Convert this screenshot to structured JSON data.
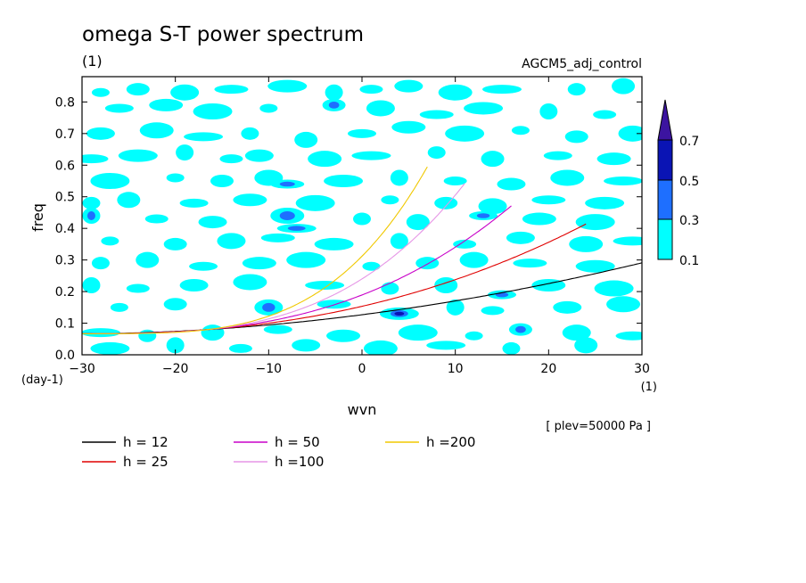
{
  "chart_data": {
    "type": "heatmap",
    "title": "omega S-T power spectrum",
    "units": "(1)",
    "right_label": "AGCM5_adj_control",
    "xlabel": "wvn",
    "x_units": "(1)",
    "ylabel": "freq",
    "y_units": "(day-1)",
    "xlim": [
      -30,
      30
    ],
    "ylim": [
      0.0,
      0.88
    ],
    "x_ticks": [
      -30,
      -20,
      -10,
      0,
      10,
      20,
      30
    ],
    "y_ticks": [
      0.0,
      0.1,
      0.2,
      0.3,
      0.4,
      0.5,
      0.6,
      0.7,
      0.8
    ],
    "pressure_note": "[ plev=50000 Pa ]",
    "colorbar": {
      "levels": [
        "0.1",
        "0.3",
        "0.5",
        "0.7"
      ],
      "colors": [
        "#00ffff",
        "#1e6fff",
        "#0a14b4",
        "#3c14a0"
      ]
    },
    "blobs": [
      {
        "x": -28,
        "y": 0.83,
        "c": 0
      },
      {
        "x": -24,
        "y": 0.84,
        "c": 0
      },
      {
        "x": -19,
        "y": 0.83,
        "c": 0
      },
      {
        "x": -14,
        "y": 0.84,
        "c": 0
      },
      {
        "x": -8,
        "y": 0.85,
        "c": 0
      },
      {
        "x": -3,
        "y": 0.83,
        "c": 0
      },
      {
        "x": 1,
        "y": 0.84,
        "c": 0
      },
      {
        "x": 5,
        "y": 0.85,
        "c": 0
      },
      {
        "x": 10,
        "y": 0.83,
        "c": 0
      },
      {
        "x": 15,
        "y": 0.84,
        "c": 0
      },
      {
        "x": 23,
        "y": 0.84,
        "c": 0
      },
      {
        "x": 28,
        "y": 0.85,
        "c": 0
      },
      {
        "x": -26,
        "y": 0.78,
        "c": 0
      },
      {
        "x": -21,
        "y": 0.79,
        "c": 0
      },
      {
        "x": -16,
        "y": 0.77,
        "c": 0
      },
      {
        "x": -10,
        "y": 0.78,
        "c": 0
      },
      {
        "x": -3,
        "y": 0.79,
        "c": 1
      },
      {
        "x": 2,
        "y": 0.78,
        "c": 0
      },
      {
        "x": 8,
        "y": 0.76,
        "c": 0
      },
      {
        "x": 13,
        "y": 0.78,
        "c": 0
      },
      {
        "x": 20,
        "y": 0.77,
        "c": 0
      },
      {
        "x": 26,
        "y": 0.76,
        "c": 0
      },
      {
        "x": -28,
        "y": 0.7,
        "c": 0
      },
      {
        "x": -22,
        "y": 0.71,
        "c": 0
      },
      {
        "x": -17,
        "y": 0.69,
        "c": 0
      },
      {
        "x": -12,
        "y": 0.7,
        "c": 0
      },
      {
        "x": -6,
        "y": 0.68,
        "c": 0
      },
      {
        "x": 0,
        "y": 0.7,
        "c": 0
      },
      {
        "x": 5,
        "y": 0.72,
        "c": 0
      },
      {
        "x": 11,
        "y": 0.7,
        "c": 0
      },
      {
        "x": 17,
        "y": 0.71,
        "c": 0
      },
      {
        "x": 23,
        "y": 0.69,
        "c": 0
      },
      {
        "x": 29,
        "y": 0.7,
        "c": 0
      },
      {
        "x": -29,
        "y": 0.62,
        "c": 0
      },
      {
        "x": -24,
        "y": 0.63,
        "c": 0
      },
      {
        "x": -19,
        "y": 0.64,
        "c": 0
      },
      {
        "x": -14,
        "y": 0.62,
        "c": 0
      },
      {
        "x": -11,
        "y": 0.63,
        "c": 0
      },
      {
        "x": -4,
        "y": 0.62,
        "c": 0
      },
      {
        "x": 1,
        "y": 0.63,
        "c": 0
      },
      {
        "x": 8,
        "y": 0.64,
        "c": 0
      },
      {
        "x": 14,
        "y": 0.62,
        "c": 0
      },
      {
        "x": 21,
        "y": 0.63,
        "c": 0
      },
      {
        "x": 27,
        "y": 0.62,
        "c": 0
      },
      {
        "x": -27,
        "y": 0.55,
        "c": 0
      },
      {
        "x": -20,
        "y": 0.56,
        "c": 0
      },
      {
        "x": -15,
        "y": 0.55,
        "c": 0
      },
      {
        "x": -10,
        "y": 0.56,
        "c": 0
      },
      {
        "x": -8,
        "y": 0.54,
        "c": 1
      },
      {
        "x": -2,
        "y": 0.55,
        "c": 0
      },
      {
        "x": 4,
        "y": 0.56,
        "c": 0
      },
      {
        "x": 10,
        "y": 0.55,
        "c": 0
      },
      {
        "x": 16,
        "y": 0.54,
        "c": 0
      },
      {
        "x": 22,
        "y": 0.56,
        "c": 0
      },
      {
        "x": 28,
        "y": 0.55,
        "c": 0
      },
      {
        "x": -29,
        "y": 0.48,
        "c": 0
      },
      {
        "x": -25,
        "y": 0.49,
        "c": 0
      },
      {
        "x": -18,
        "y": 0.48,
        "c": 0
      },
      {
        "x": -12,
        "y": 0.49,
        "c": 0
      },
      {
        "x": -5,
        "y": 0.48,
        "c": 0
      },
      {
        "x": 3,
        "y": 0.49,
        "c": 0
      },
      {
        "x": 9,
        "y": 0.48,
        "c": 0
      },
      {
        "x": 14,
        "y": 0.47,
        "c": 0
      },
      {
        "x": 20,
        "y": 0.49,
        "c": 0
      },
      {
        "x": 26,
        "y": 0.48,
        "c": 0
      },
      {
        "x": -29,
        "y": 0.44,
        "c": 1
      },
      {
        "x": -22,
        "y": 0.43,
        "c": 0
      },
      {
        "x": -16,
        "y": 0.42,
        "c": 0
      },
      {
        "x": -8,
        "y": 0.44,
        "c": 1
      },
      {
        "x": -7,
        "y": 0.4,
        "c": 1
      },
      {
        "x": 0,
        "y": 0.43,
        "c": 0
      },
      {
        "x": 6,
        "y": 0.42,
        "c": 0
      },
      {
        "x": 13,
        "y": 0.44,
        "c": 1
      },
      {
        "x": 19,
        "y": 0.43,
        "c": 0
      },
      {
        "x": 25,
        "y": 0.42,
        "c": 0
      },
      {
        "x": -27,
        "y": 0.36,
        "c": 0
      },
      {
        "x": -20,
        "y": 0.35,
        "c": 0
      },
      {
        "x": -14,
        "y": 0.36,
        "c": 0
      },
      {
        "x": -9,
        "y": 0.37,
        "c": 0
      },
      {
        "x": -3,
        "y": 0.35,
        "c": 0
      },
      {
        "x": 4,
        "y": 0.36,
        "c": 0
      },
      {
        "x": 11,
        "y": 0.35,
        "c": 0
      },
      {
        "x": 17,
        "y": 0.37,
        "c": 0
      },
      {
        "x": 24,
        "y": 0.35,
        "c": 0
      },
      {
        "x": 29,
        "y": 0.36,
        "c": 0
      },
      {
        "x": -28,
        "y": 0.29,
        "c": 0
      },
      {
        "x": -23,
        "y": 0.3,
        "c": 0
      },
      {
        "x": -17,
        "y": 0.28,
        "c": 0
      },
      {
        "x": -11,
        "y": 0.29,
        "c": 0
      },
      {
        "x": -6,
        "y": 0.3,
        "c": 0
      },
      {
        "x": 1,
        "y": 0.28,
        "c": 0
      },
      {
        "x": 7,
        "y": 0.29,
        "c": 0
      },
      {
        "x": 12,
        "y": 0.3,
        "c": 0
      },
      {
        "x": 18,
        "y": 0.29,
        "c": 0
      },
      {
        "x": 25,
        "y": 0.28,
        "c": 0
      },
      {
        "x": -29,
        "y": 0.22,
        "c": 0
      },
      {
        "x": -24,
        "y": 0.21,
        "c": 0
      },
      {
        "x": -18,
        "y": 0.22,
        "c": 0
      },
      {
        "x": -12,
        "y": 0.23,
        "c": 0
      },
      {
        "x": -4,
        "y": 0.22,
        "c": 0
      },
      {
        "x": 3,
        "y": 0.21,
        "c": 0
      },
      {
        "x": 9,
        "y": 0.22,
        "c": 0
      },
      {
        "x": 15,
        "y": 0.19,
        "c": 1
      },
      {
        "x": 20,
        "y": 0.22,
        "c": 0
      },
      {
        "x": 27,
        "y": 0.21,
        "c": 0
      },
      {
        "x": -26,
        "y": 0.15,
        "c": 0
      },
      {
        "x": -20,
        "y": 0.16,
        "c": 0
      },
      {
        "x": -10,
        "y": 0.15,
        "c": 1
      },
      {
        "x": -3,
        "y": 0.16,
        "c": 0
      },
      {
        "x": 4,
        "y": 0.13,
        "c": 2
      },
      {
        "x": 10,
        "y": 0.15,
        "c": 0
      },
      {
        "x": 14,
        "y": 0.14,
        "c": 0
      },
      {
        "x": 22,
        "y": 0.15,
        "c": 0
      },
      {
        "x": 28,
        "y": 0.16,
        "c": 0
      },
      {
        "x": -28,
        "y": 0.07,
        "c": 0
      },
      {
        "x": -23,
        "y": 0.06,
        "c": 0
      },
      {
        "x": -16,
        "y": 0.07,
        "c": 0
      },
      {
        "x": -9,
        "y": 0.08,
        "c": 0
      },
      {
        "x": -2,
        "y": 0.06,
        "c": 0
      },
      {
        "x": 6,
        "y": 0.07,
        "c": 0
      },
      {
        "x": 12,
        "y": 0.06,
        "c": 0
      },
      {
        "x": 17,
        "y": 0.08,
        "c": 1
      },
      {
        "x": 23,
        "y": 0.07,
        "c": 0
      },
      {
        "x": 29,
        "y": 0.06,
        "c": 0
      },
      {
        "x": -27,
        "y": 0.02,
        "c": 0
      },
      {
        "x": -20,
        "y": 0.03,
        "c": 0
      },
      {
        "x": -13,
        "y": 0.02,
        "c": 0
      },
      {
        "x": -6,
        "y": 0.03,
        "c": 0
      },
      {
        "x": 2,
        "y": 0.02,
        "c": 0
      },
      {
        "x": 9,
        "y": 0.03,
        "c": 0
      },
      {
        "x": 16,
        "y": 0.02,
        "c": 0
      },
      {
        "x": 24,
        "y": 0.03,
        "c": 0
      }
    ],
    "series": [
      {
        "name": "h = 12",
        "color": "#000000",
        "h": 12,
        "x_end": 30
      },
      {
        "name": "h = 25",
        "color": "#e00000",
        "h": 25,
        "x_end": 24
      },
      {
        "name": "h = 50",
        "color": "#c800c8",
        "h": 50,
        "x_end": 16
      },
      {
        "name": "h =100",
        "color": "#e696e6",
        "h": 100,
        "x_end": 11
      },
      {
        "name": "h =200",
        "color": "#f0c800",
        "h": 200,
        "x_end": 7
      }
    ]
  }
}
